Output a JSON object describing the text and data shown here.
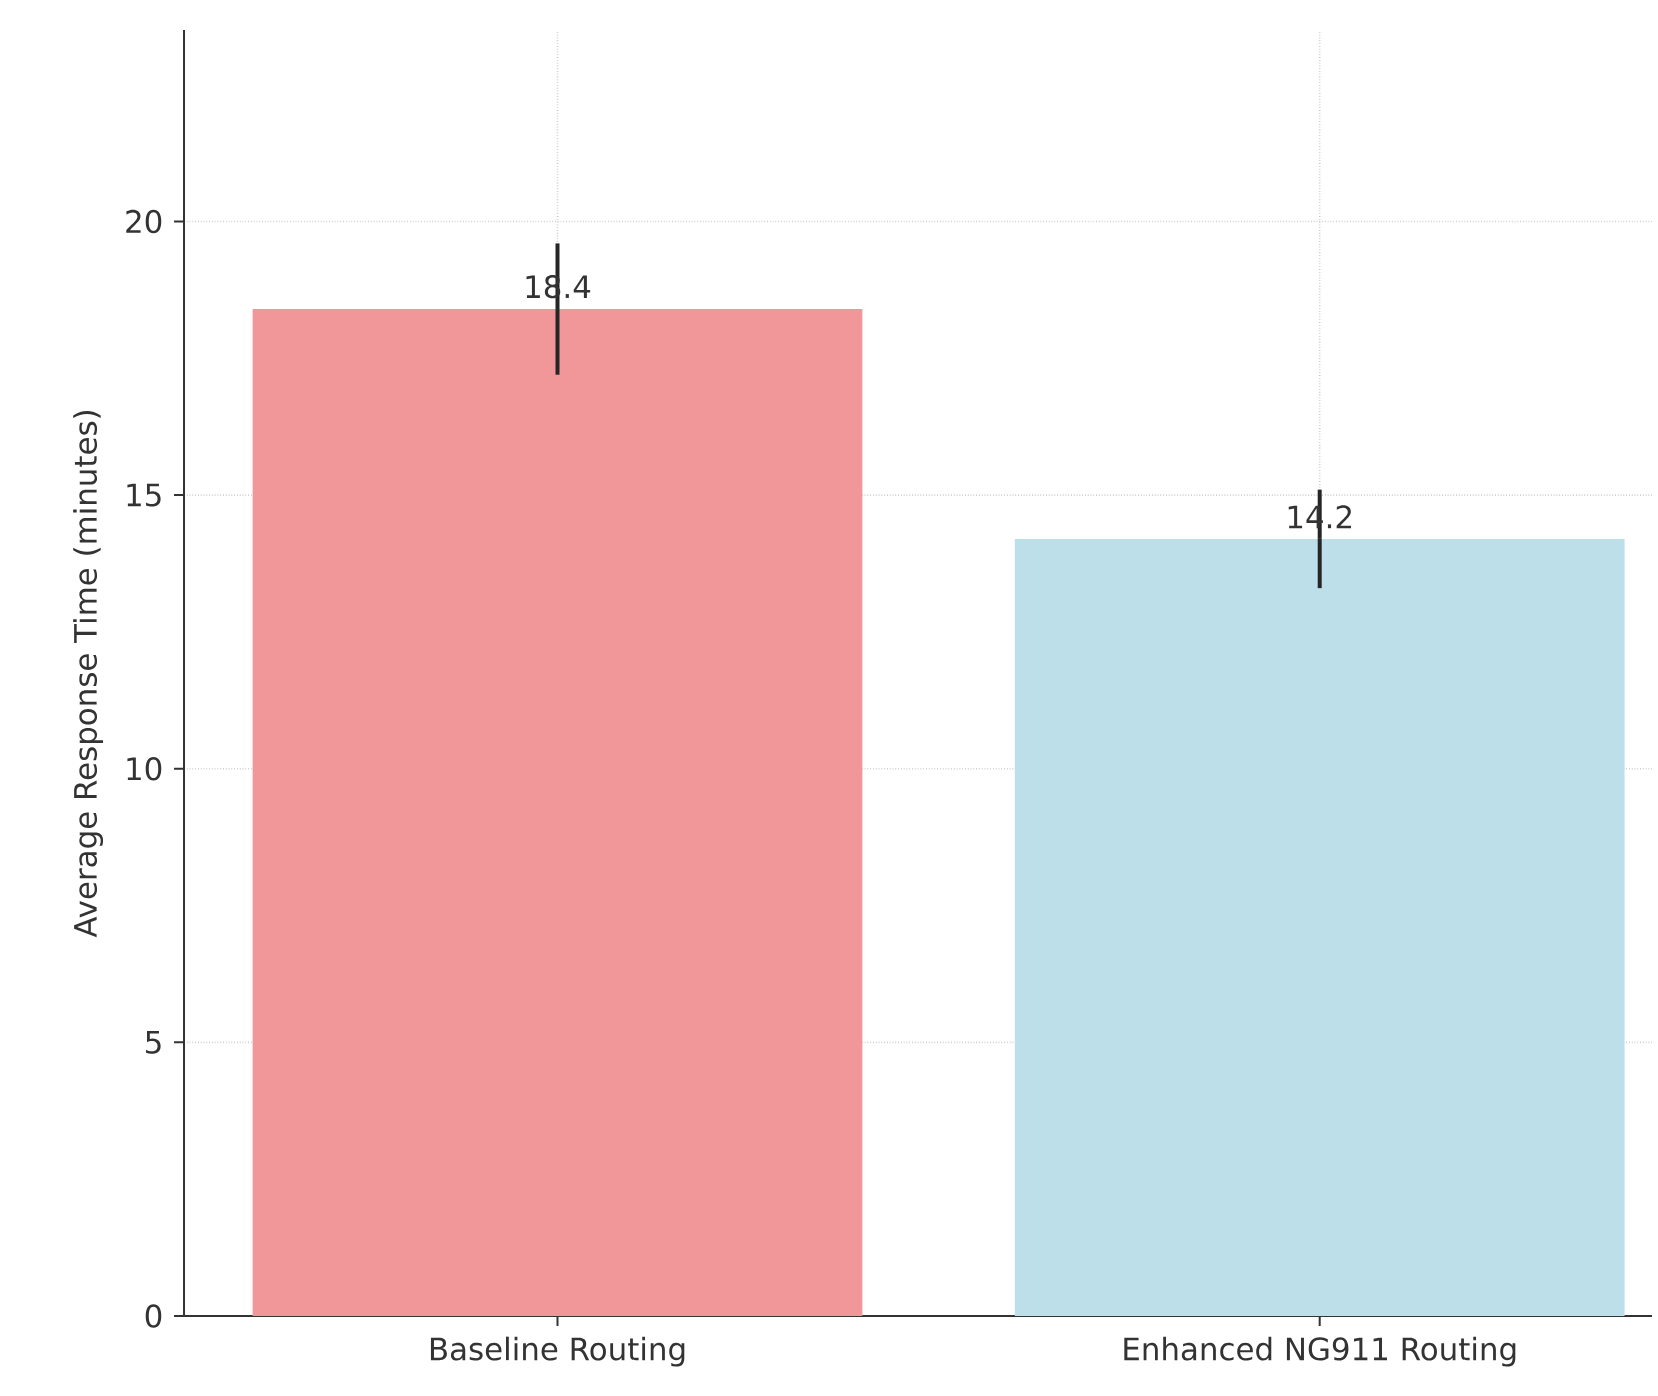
{
  "chart_data": {
    "type": "bar",
    "ylabel": "Average Response Time (minutes)",
    "categories": [
      "Baseline Routing",
      "Enhanced NG911 Routing"
    ],
    "values": [
      18.4,
      14.2
    ],
    "errors": [
      1.2,
      0.9
    ],
    "colors": [
      "#f19799",
      "#bddfe9"
    ],
    "ylim": [
      0,
      23.5
    ],
    "yticks": [
      0,
      5,
      10,
      15,
      20
    ],
    "grid": true,
    "data_labels": true
  }
}
